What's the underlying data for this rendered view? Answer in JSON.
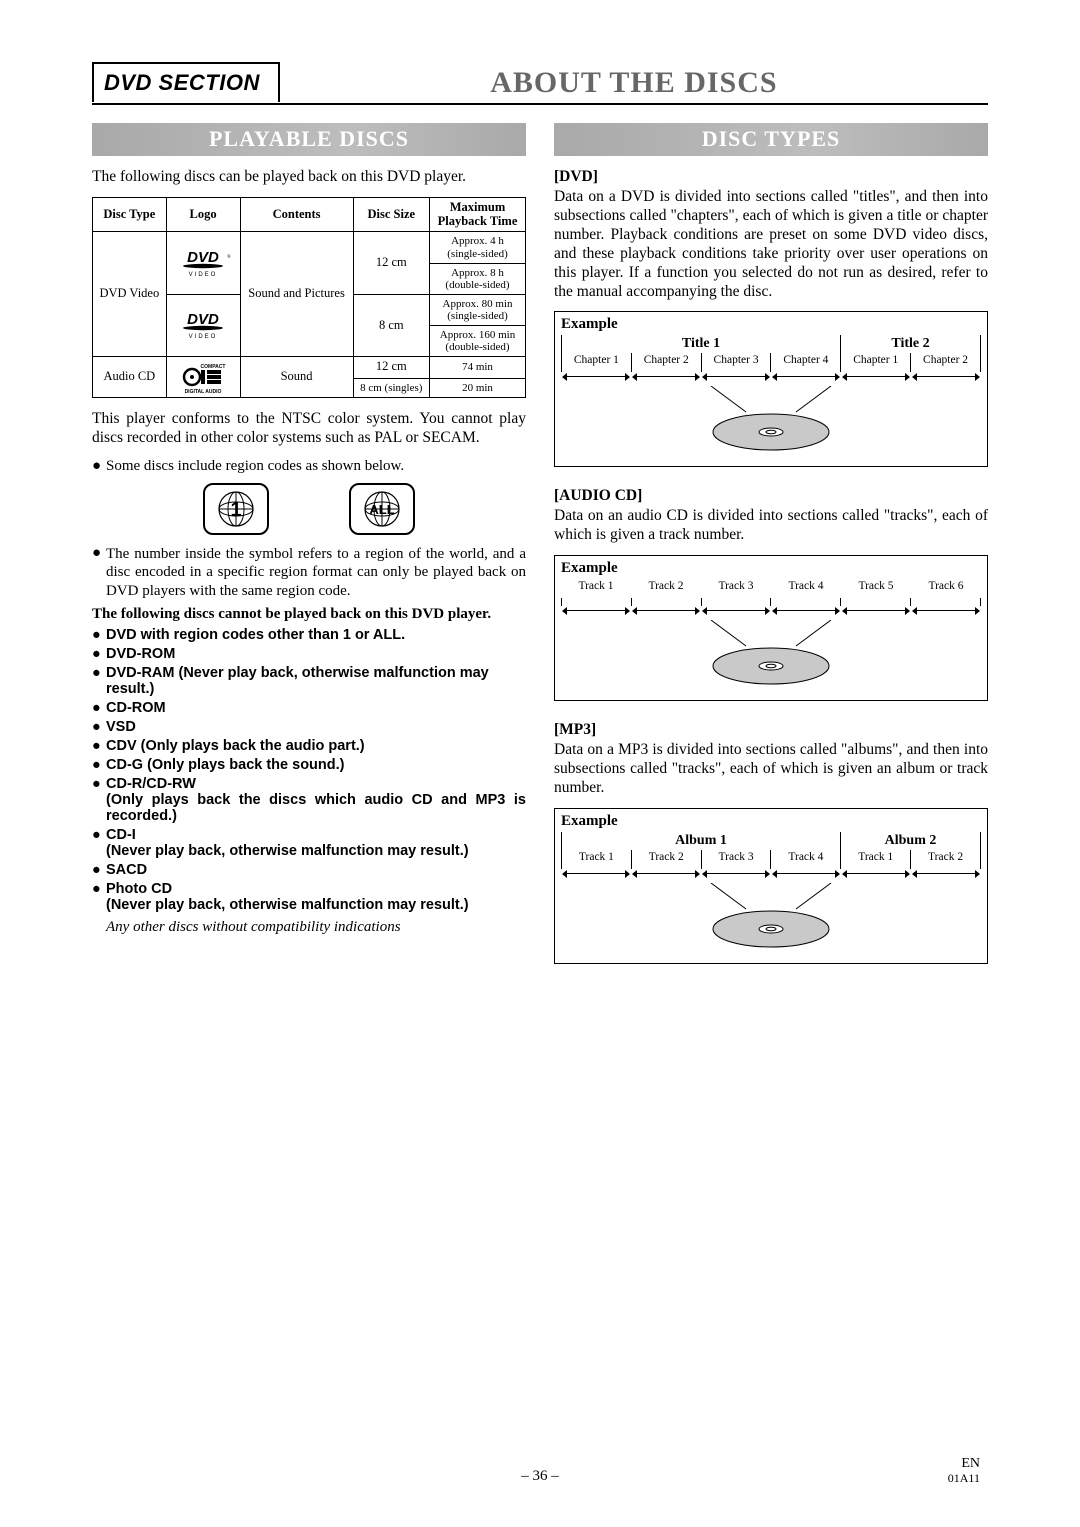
{
  "header": {
    "section_tag": "DVD SECTION",
    "main_title": "ABOUT THE DISCS"
  },
  "left": {
    "subheader": "PLAYABLE DISCS",
    "intro": "The following discs can be played back on this DVD player.",
    "table": {
      "headers": [
        "Disc Type",
        "Logo",
        "Contents",
        "Disc Size",
        "Maximum Playback Time"
      ],
      "dvd_type": "DVD Video",
      "dvd_contents": "Sound and Pictures",
      "sizes": [
        "12 cm",
        "8 cm",
        "12 cm",
        "8 cm (singles)"
      ],
      "times": [
        "Approx. 4 h (single-sided)",
        "Approx. 8 h (double-sided)",
        "Approx. 80 min (single-sided)",
        "Approx. 160 min (double-sided)",
        "74 min",
        "20 min"
      ],
      "cd_type": "Audio CD",
      "cd_contents": "Sound"
    },
    "ntsc_note": "This player conforms to the NTSC color system. You cannot play discs recorded in other color systems such as PAL or SECAM.",
    "region_bullet": "Some discs include region codes as shown below.",
    "region_labels": [
      "1",
      "ALL"
    ],
    "region_note": "The number inside the symbol refers to a region of the world, and a disc encoded in a specific region format can only be played back on DVD players with the same region code.",
    "cannot_intro": "The following discs cannot be played back on this DVD player.",
    "cannot_list": [
      "DVD with region codes other than 1 or ALL.",
      "DVD-ROM",
      "DVD-RAM (Never play back, otherwise malfunction may result.)",
      "CD-ROM",
      "VSD",
      "CDV (Only plays back the audio part.)",
      "CD-G (Only plays back the sound.)",
      "CD-R/CD-RW\n(Only plays back the discs which audio CD and MP3 is recorded.)",
      "CD-I\n(Never play back, otherwise malfunction may result.)",
      "SACD",
      "Photo CD\n(Never play back, otherwise malfunction may result.)"
    ],
    "any_other": "Any other discs without compatibility indications"
  },
  "right": {
    "subheader": "DISC TYPES",
    "dvd": {
      "head": "[DVD]",
      "text": "Data on a DVD is divided into sections called \"titles\", and then into subsections called \"chapters\", each of which is given a title or chapter number. Playback conditions are preset on some DVD video discs, and these playback conditions take priority over user operations on this player. If a function you selected do not run as desired, refer to the manual accompanying the disc.",
      "example_label": "Example",
      "titles": [
        "Title 1",
        "Title 2"
      ],
      "chapters": [
        "Chapter 1",
        "Chapter 2",
        "Chapter 3",
        "Chapter 4",
        "Chapter 1",
        "Chapter 2"
      ]
    },
    "audio": {
      "head": "[AUDIO CD]",
      "text": "Data on an audio CD is divided into sections called \"tracks\", each of which is given a track number.",
      "example_label": "Example",
      "tracks": [
        "Track 1",
        "Track 2",
        "Track 3",
        "Track 4",
        "Track 5",
        "Track 6"
      ]
    },
    "mp3": {
      "head": "[MP3]",
      "text": "Data on a MP3 is divided into sections called \"albums\", and then into subsections called \"tracks\", each of which is given an album or track number.",
      "example_label": "Example",
      "albums": [
        "Album 1",
        "Album 2"
      ],
      "tracks": [
        "Track 1",
        "Track 2",
        "Track 3",
        "Track 4",
        "Track 1",
        "Track 2"
      ]
    }
  },
  "footer": {
    "page": "– 36 –",
    "lang": "EN",
    "code": "01A11"
  },
  "colors": {
    "accent_gray": "#b8b8b8",
    "title_gray": "#676767",
    "disc_fill": "#c9c9c9"
  }
}
